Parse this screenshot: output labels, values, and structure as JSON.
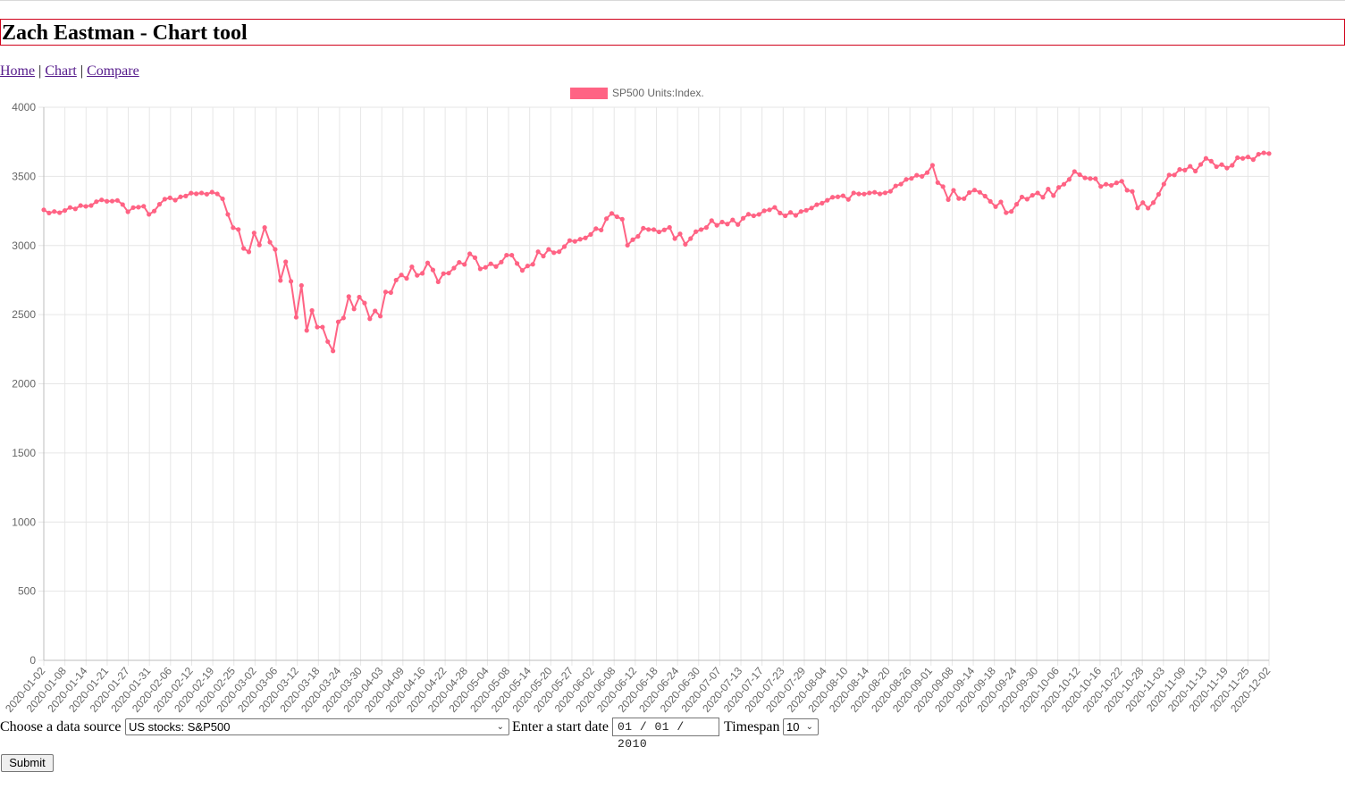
{
  "page": {
    "title": "Zach Eastman - Chart tool",
    "nav": {
      "home": "Home",
      "chart": "Chart",
      "compare": "Compare",
      "separator": "|"
    }
  },
  "form": {
    "source_label": "Choose a data source",
    "source_value": "US stocks: S&P500",
    "date_label": "Enter a start date",
    "date_value": "01 / 01 / 2010",
    "timespan_label": "Timespan",
    "timespan_value": "10",
    "submit_label": "Submit"
  },
  "colors": {
    "line": "#ff6384",
    "grid": "#e6e6e6",
    "axis_text": "#666666",
    "title_border": "#d0021b"
  },
  "chart_data": {
    "type": "line",
    "legend": {
      "label": "SP500 Units:Index.",
      "position": "top"
    },
    "ylim": [
      0,
      4000
    ],
    "yticks": [
      0,
      500,
      1000,
      1500,
      2000,
      2500,
      3000,
      3500,
      4000
    ],
    "x_tick_labels": [
      "2020-01-02",
      "2020-01-08",
      "2020-01-14",
      "2020-01-21",
      "2020-01-27",
      "2020-01-31",
      "2020-02-06",
      "2020-02-12",
      "2020-02-19",
      "2020-02-25",
      "2020-03-02",
      "2020-03-06",
      "2020-03-12",
      "2020-03-18",
      "2020-03-24",
      "2020-03-30",
      "2020-04-03",
      "2020-04-09",
      "2020-04-16",
      "2020-04-22",
      "2020-04-28",
      "2020-05-04",
      "2020-05-08",
      "2020-05-14",
      "2020-05-20",
      "2020-05-27",
      "2020-06-02",
      "2020-06-08",
      "2020-06-12",
      "2020-06-18",
      "2020-06-24",
      "2020-06-30",
      "2020-07-07",
      "2020-07-13",
      "2020-07-17",
      "2020-07-23",
      "2020-07-29",
      "2020-08-04",
      "2020-08-10",
      "2020-08-14",
      "2020-08-20",
      "2020-08-26",
      "2020-09-01",
      "2020-09-08",
      "2020-09-14",
      "2020-09-18",
      "2020-09-24",
      "2020-09-30",
      "2020-10-06",
      "2020-10-12",
      "2020-10-16",
      "2020-10-22",
      "2020-10-28",
      "2020-11-03",
      "2020-11-09",
      "2020-11-13",
      "2020-11-19",
      "2020-11-25",
      "2020-12-02"
    ],
    "series": [
      {
        "name": "SP500 Units:Index.",
        "values": [
          3258,
          3235,
          3246,
          3237,
          3253,
          3275,
          3265,
          3289,
          3283,
          3289,
          3317,
          3330,
          3320,
          3321,
          3326,
          3296,
          3244,
          3274,
          3277,
          3284,
          3225,
          3249,
          3298,
          3335,
          3345,
          3328,
          3352,
          3358,
          3379,
          3374,
          3380,
          3371,
          3386,
          3373,
          3338,
          3225,
          3129,
          3116,
          2979,
          2954,
          3091,
          3004,
          3130,
          3024,
          2972,
          2747,
          2882,
          2741,
          2481,
          2711,
          2386,
          2530,
          2410,
          2410,
          2305,
          2237,
          2448,
          2476,
          2631,
          2541,
          2627,
          2584,
          2470,
          2527,
          2489,
          2664,
          2660,
          2750,
          2787,
          2762,
          2846,
          2784,
          2799,
          2874,
          2823,
          2737,
          2797,
          2800,
          2837,
          2878,
          2863,
          2940,
          2912,
          2831,
          2842,
          2868,
          2848,
          2880,
          2930,
          2930,
          2870,
          2820,
          2852,
          2864,
          2955,
          2923,
          2972,
          2948,
          2955,
          2992,
          3036,
          3030,
          3045,
          3055,
          3080,
          3122,
          3112,
          3194,
          3232,
          3208,
          3190,
          3002,
          3042,
          3066,
          3125,
          3116,
          3115,
          3098,
          3113,
          3131,
          3050,
          3084,
          3009,
          3050,
          3100,
          3115,
          3130,
          3180,
          3146,
          3170,
          3155,
          3185,
          3152,
          3197,
          3226,
          3215,
          3225,
          3251,
          3258,
          3276,
          3235,
          3215,
          3239,
          3218,
          3246,
          3255,
          3271,
          3295,
          3306,
          3327,
          3349,
          3352,
          3360,
          3333,
          3380,
          3373,
          3372,
          3380,
          3385,
          3373,
          3381,
          3392,
          3431,
          3444,
          3478,
          3485,
          3508,
          3500,
          3527,
          3580,
          3455,
          3426,
          3332,
          3399,
          3340,
          3339,
          3383,
          3401,
          3385,
          3357,
          3319,
          3281,
          3315,
          3237,
          3246,
          3298,
          3351,
          3335,
          3363,
          3380,
          3349,
          3408,
          3361,
          3420,
          3443,
          3478,
          3535,
          3512,
          3489,
          3484,
          3483,
          3427,
          3443,
          3435,
          3453,
          3465,
          3400,
          3391,
          3271,
          3310,
          3270,
          3310,
          3370,
          3444,
          3510,
          3510,
          3550,
          3545,
          3573,
          3538,
          3586,
          3630,
          3610,
          3570,
          3585,
          3560,
          3580,
          3635,
          3630,
          3640,
          3621,
          3660,
          3670,
          3665
        ]
      }
    ]
  }
}
